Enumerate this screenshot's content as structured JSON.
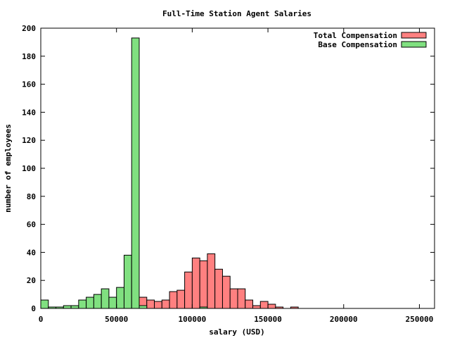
{
  "chart_data": {
    "type": "bar",
    "subtype": "overlapping-histogram",
    "title": "Full-Time Station Agent Salaries",
    "xlabel": "salary (USD)",
    "ylabel": "number of employees",
    "xlim": [
      0,
      260000
    ],
    "ylim": [
      0,
      200
    ],
    "bin_width": 5000,
    "grid": false,
    "legend_position": "top-right",
    "x_ticks": [
      0,
      50000,
      100000,
      150000,
      200000,
      250000
    ],
    "x_tick_labels": [
      "0",
      "50000",
      "100000",
      "150000",
      "200000",
      "250000"
    ],
    "y_ticks": [
      0,
      20,
      40,
      60,
      80,
      100,
      120,
      140,
      160,
      180,
      200
    ],
    "y_tick_labels": [
      "0",
      "20",
      "40",
      "60",
      "80",
      "100",
      "120",
      "140",
      "160",
      "180",
      "200"
    ],
    "series": [
      {
        "name": "Total Compensation",
        "color": "#ff8080",
        "bins": [
          [
            60000,
            2
          ],
          [
            65000,
            8
          ],
          [
            70000,
            6
          ],
          [
            75000,
            5
          ],
          [
            80000,
            6
          ],
          [
            85000,
            12
          ],
          [
            90000,
            13
          ],
          [
            95000,
            26
          ],
          [
            100000,
            36
          ],
          [
            105000,
            34
          ],
          [
            110000,
            39
          ],
          [
            115000,
            28
          ],
          [
            120000,
            23
          ],
          [
            125000,
            14
          ],
          [
            130000,
            14
          ],
          [
            135000,
            6
          ],
          [
            140000,
            2
          ],
          [
            145000,
            5
          ],
          [
            150000,
            3
          ],
          [
            155000,
            1
          ],
          [
            165000,
            1
          ]
        ]
      },
      {
        "name": "Base Compensation",
        "color": "#80e080",
        "bins": [
          [
            0,
            6
          ],
          [
            5000,
            1
          ],
          [
            10000,
            1
          ],
          [
            15000,
            2
          ],
          [
            20000,
            2
          ],
          [
            25000,
            6
          ],
          [
            30000,
            8
          ],
          [
            35000,
            10
          ],
          [
            40000,
            14
          ],
          [
            45000,
            8
          ],
          [
            50000,
            15
          ],
          [
            55000,
            38
          ],
          [
            60000,
            193
          ],
          [
            65000,
            2
          ],
          [
            105000,
            1
          ]
        ]
      }
    ]
  }
}
